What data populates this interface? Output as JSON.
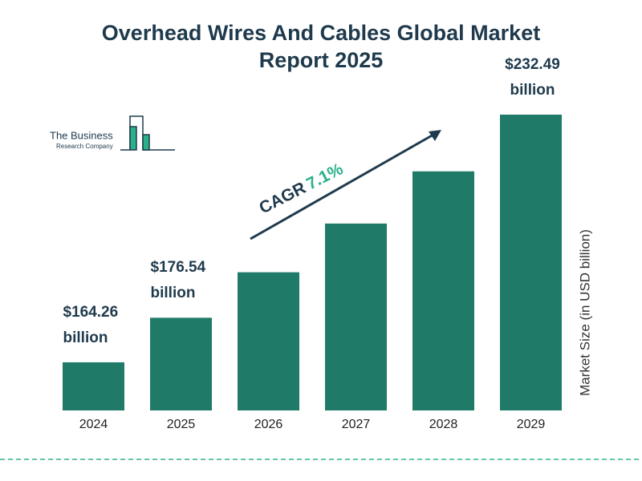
{
  "chart_data": {
    "type": "bar",
    "title": "Overhead Wires And Cables Global Market Report 2025",
    "categories": [
      "2024",
      "2025",
      "2026",
      "2027",
      "2028",
      "2029"
    ],
    "values": [
      164.26,
      176.54,
      189.07,
      202.49,
      216.87,
      232.49
    ],
    "value_labels": [
      "$164.26 billion",
      "$176.54 billion",
      null,
      null,
      null,
      "$232.49 billion"
    ],
    "color": "#207a68",
    "ylim": [
      151,
      240
    ],
    "y_axis_label": "Market Size (in USD billion)",
    "annotation": {
      "label": "CAGR",
      "value": "7.1%"
    },
    "logo": {
      "line1": "The Business",
      "line2": "Research Company"
    }
  }
}
